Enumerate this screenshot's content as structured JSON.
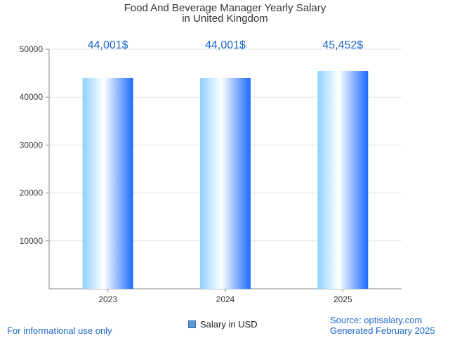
{
  "title": {
    "line1": "Food And Beverage Manager Yearly Salary",
    "line2": "in United Kingdom"
  },
  "chart_data": {
    "type": "bar",
    "categories": [
      "2023",
      "2024",
      "2025"
    ],
    "values": [
      44001,
      44001,
      45452
    ],
    "data_labels": [
      "44,001$",
      "44,001$",
      "45,452$"
    ],
    "series": [
      {
        "name": "Salary in USD",
        "values": [
          44001,
          44001,
          45452
        ]
      }
    ],
    "ylim": [
      0,
      50000
    ],
    "yticks": [
      10000,
      20000,
      30000,
      40000,
      50000
    ],
    "grid": true,
    "legend_position": "bottom-center",
    "bar_color_light": "#ffffff",
    "bar_color_mid": "#8fd0ff",
    "bar_color_dark": "#1a6cff",
    "label_color": "#1a66cc"
  },
  "legend": {
    "label": "Salary in USD"
  },
  "footer": {
    "left": "For informational use only",
    "source": "Source: optisalary.com",
    "generated": "Generated February 2025"
  }
}
